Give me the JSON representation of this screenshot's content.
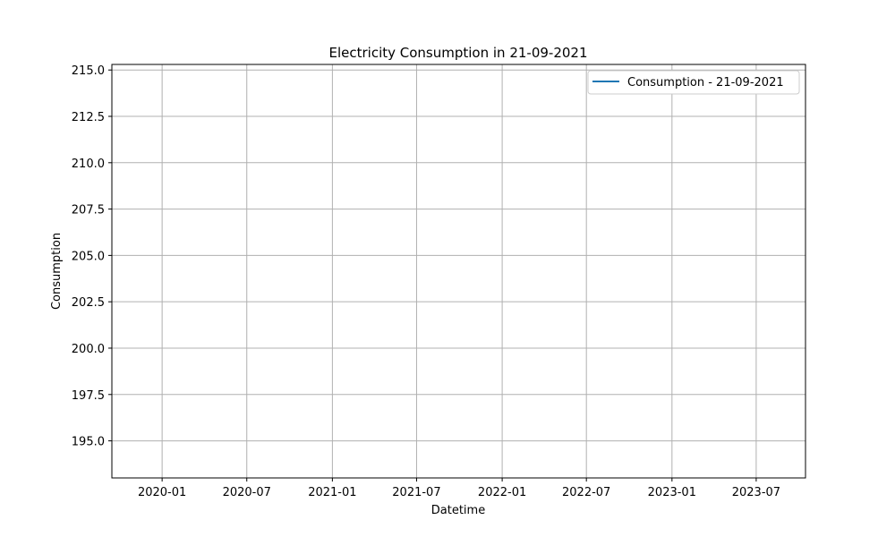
{
  "chart_data": {
    "type": "line",
    "title": "Electricity Consumption in 21-09-2021",
    "xlabel": "Datetime",
    "ylabel": "Consumption",
    "x_ticks": [
      "2020-01",
      "2020-07",
      "2021-01",
      "2021-07",
      "2022-01",
      "2022-07",
      "2023-01",
      "2023-07"
    ],
    "y_ticks": [
      "195.0",
      "197.5",
      "200.0",
      "202.5",
      "205.0",
      "207.5",
      "210.0",
      "212.5",
      "215.0"
    ],
    "xlim": [
      "2019-09-15",
      "2023-10-15"
    ],
    "ylim": [
      193.0,
      215.3
    ],
    "grid": true,
    "legend_position": "top-right",
    "series": [
      {
        "name": "Consumption - 21-09-2021",
        "color": "#1f77b4",
        "points": []
      }
    ]
  }
}
